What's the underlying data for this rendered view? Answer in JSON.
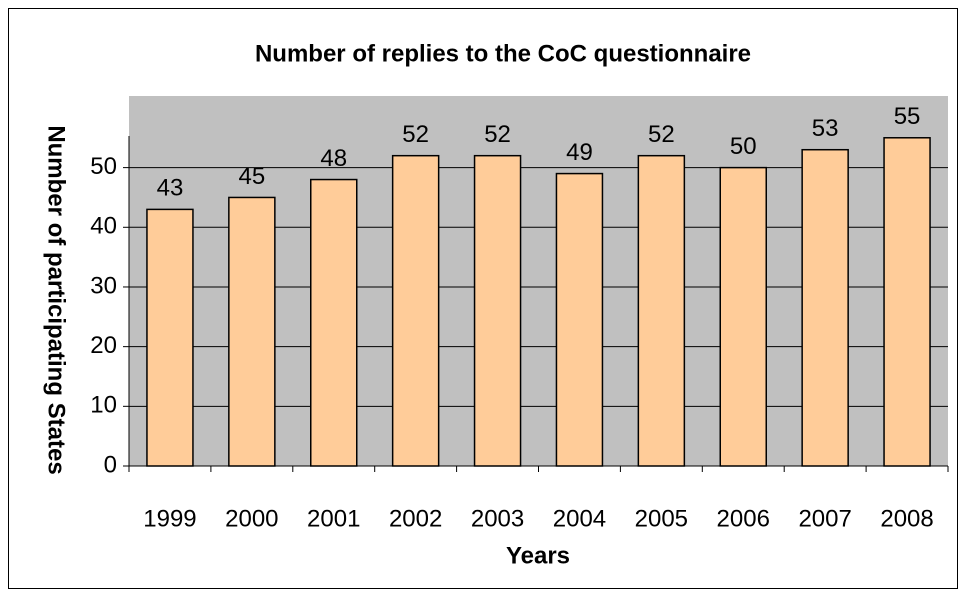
{
  "chart_data": {
    "type": "bar",
    "title": "Number of replies to the CoC questionnaire",
    "x_label": "Years",
    "y_label": "Number of participating States",
    "categories": [
      "1999",
      "2000",
      "2001",
      "2002",
      "2003",
      "2004",
      "2005",
      "2006",
      "2007",
      "2008"
    ],
    "values": [
      43,
      45,
      48,
      52,
      52,
      49,
      52,
      50,
      53,
      55
    ],
    "color": "#ffcc99",
    "plot_background": "#c0c0c0",
    "ylim": [
      0,
      62
    ],
    "yticks": [
      0,
      10,
      20,
      30,
      40,
      50
    ],
    "grid": true
  }
}
